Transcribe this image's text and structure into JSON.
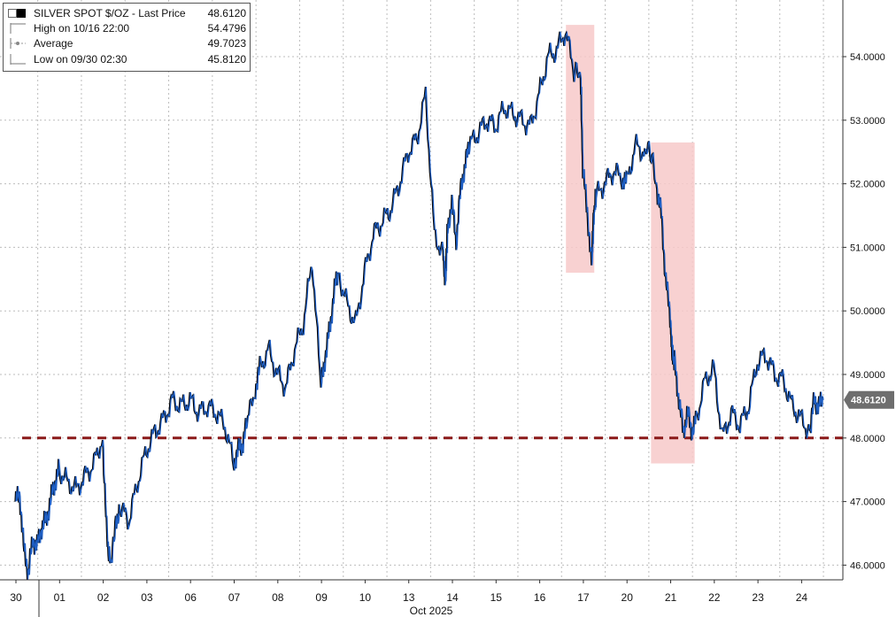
{
  "legend": {
    "series": "SILVER SPOT $/OZ - Last Price",
    "last": "48.6120",
    "high_label": "High on 10/16 22:00",
    "high_value": "54.4796",
    "avg_label": "Average",
    "avg_value": "49.7023",
    "low_label": "Low on 09/30 02:30",
    "low_value": "45.8120"
  },
  "colors": {
    "line": "#1f5fc4",
    "line_shadow": "#000000",
    "support": "#8b1a1a",
    "highlight": "#f7c9c9",
    "last_label_bg": "#6e6e6e",
    "grid": "#bdbdbd"
  },
  "chart_data": {
    "type": "line",
    "title": "",
    "xlabel": "Oct 2025",
    "ylabel": "",
    "ylim": [
      45.8,
      54.6
    ],
    "y_ticks": [
      "46.0000",
      "47.0000",
      "48.0000",
      "49.0000",
      "50.0000",
      "51.0000",
      "52.0000",
      "53.0000",
      "54.0000"
    ],
    "x_tick_labels": [
      "30",
      "01",
      "02",
      "03",
      "06",
      "07",
      "08",
      "09",
      "10",
      "13",
      "14",
      "15",
      "16",
      "17",
      "20",
      "21",
      "22",
      "23",
      "24"
    ],
    "last_price_label": "48.6120",
    "support_level": 48.0,
    "highlights": [
      {
        "from": 12.6,
        "to": 13.25,
        "ymin": 50.6,
        "ymax": 54.5
      },
      {
        "from": 14.55,
        "to": 15.55,
        "ymin": 47.6,
        "ymax": 52.65
      }
    ],
    "series": [
      {
        "x": [
          0.0,
          0.1,
          0.2,
          0.3,
          0.4,
          0.5,
          0.6,
          0.7,
          0.8,
          0.9,
          1.0,
          1.2,
          1.4,
          1.6,
          1.8,
          2.0,
          2.1,
          2.18,
          2.3,
          2.4,
          2.6,
          2.8,
          3.0,
          3.2,
          3.4,
          3.6,
          3.8,
          4.0,
          4.2,
          4.4,
          4.6,
          4.8,
          5.0,
          5.1,
          5.2,
          5.3,
          5.5,
          5.6,
          5.8,
          6.0,
          6.2,
          6.4,
          6.6,
          6.8,
          7.0,
          7.1,
          7.2,
          7.3,
          7.4,
          7.6,
          7.8,
          8.0,
          8.2,
          8.4,
          8.6,
          8.8,
          9.0,
          9.2,
          9.4,
          9.6,
          9.8,
          9.85,
          9.9,
          10.0,
          10.1,
          10.2,
          10.3,
          10.4,
          10.6,
          10.8,
          11.0,
          11.2,
          11.4,
          11.6,
          11.8,
          12.0,
          12.2,
          12.4,
          12.6,
          12.8,
          12.95,
          13.0,
          13.1,
          13.2,
          13.25,
          13.3,
          13.5,
          13.7,
          13.9,
          14.0,
          14.2,
          14.4,
          14.55,
          14.7,
          14.8,
          14.9,
          15.0,
          15.05,
          15.1,
          15.2,
          15.3,
          15.4,
          15.5,
          15.6,
          15.8,
          16.0,
          16.2,
          16.4,
          16.6,
          16.8,
          17.0,
          17.2,
          17.4,
          17.6,
          17.8,
          18.0,
          18.2,
          18.3,
          18.4,
          18.5
        ],
        "y": [
          47.0,
          47.1,
          46.2,
          45.9,
          46.4,
          46.3,
          46.6,
          46.7,
          47.0,
          47.3,
          47.5,
          47.3,
          47.2,
          47.4,
          47.6,
          48.0,
          46.4,
          46.0,
          46.7,
          46.9,
          46.7,
          47.3,
          47.8,
          48.1,
          48.3,
          48.6,
          48.5,
          48.6,
          48.4,
          48.5,
          48.4,
          48.2,
          47.6,
          47.8,
          47.9,
          48.2,
          48.8,
          49.1,
          49.4,
          49.0,
          48.8,
          49.4,
          49.8,
          50.8,
          48.8,
          49.3,
          49.7,
          50.3,
          50.6,
          50.1,
          49.8,
          50.6,
          51.2,
          51.4,
          51.6,
          52.0,
          52.5,
          52.7,
          53.4,
          51.2,
          50.9,
          50.4,
          51.3,
          51.7,
          51.1,
          51.9,
          52.3,
          52.6,
          52.8,
          53.0,
          52.9,
          53.2,
          53.1,
          53.0,
          52.9,
          53.4,
          54.0,
          54.1,
          54.4,
          53.8,
          53.7,
          52.2,
          51.6,
          50.7,
          51.5,
          51.8,
          52.0,
          52.2,
          52.1,
          52.0,
          52.6,
          52.5,
          52.55,
          51.9,
          51.5,
          50.5,
          49.9,
          49.3,
          49.2,
          48.6,
          48.1,
          48.4,
          48.1,
          48.3,
          48.9,
          49.1,
          48.0,
          48.4,
          48.2,
          48.5,
          49.2,
          49.3,
          49.0,
          48.9,
          48.5,
          48.3,
          48.1,
          48.6,
          48.5,
          48.6
        ]
      }
    ]
  }
}
